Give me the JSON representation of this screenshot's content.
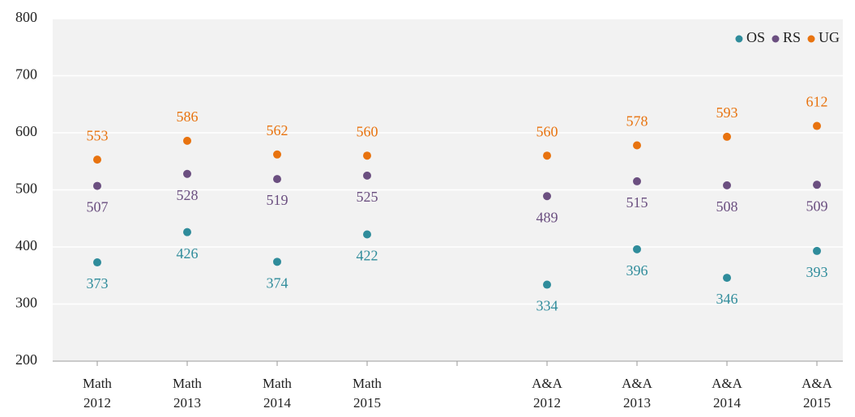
{
  "chart_data": {
    "type": "scatter",
    "categories": [
      "Math\n2012",
      "Math\n2013",
      "Math\n2014",
      "Math\n2015",
      null,
      "A&A\n2012",
      "A&A\n2013",
      "A&A\n2014",
      "A&A\n2015"
    ],
    "series": [
      {
        "name": "OS",
        "color": "#2f8c9b",
        "label_position": "below",
        "values": [
          373,
          426,
          374,
          422,
          null,
          334,
          396,
          346,
          393
        ]
      },
      {
        "name": "RS",
        "color": "#6b4f80",
        "label_position": "below",
        "values": [
          507,
          528,
          519,
          525,
          null,
          489,
          515,
          508,
          509
        ]
      },
      {
        "name": "UG",
        "color": "#e8730f",
        "label_position": "above",
        "values": [
          553,
          586,
          562,
          560,
          null,
          560,
          578,
          593,
          612
        ]
      }
    ],
    "ylim": [
      200,
      800
    ],
    "yticks": [
      200,
      300,
      400,
      500,
      600,
      700,
      800
    ],
    "grid": true,
    "legend": "top-right"
  }
}
